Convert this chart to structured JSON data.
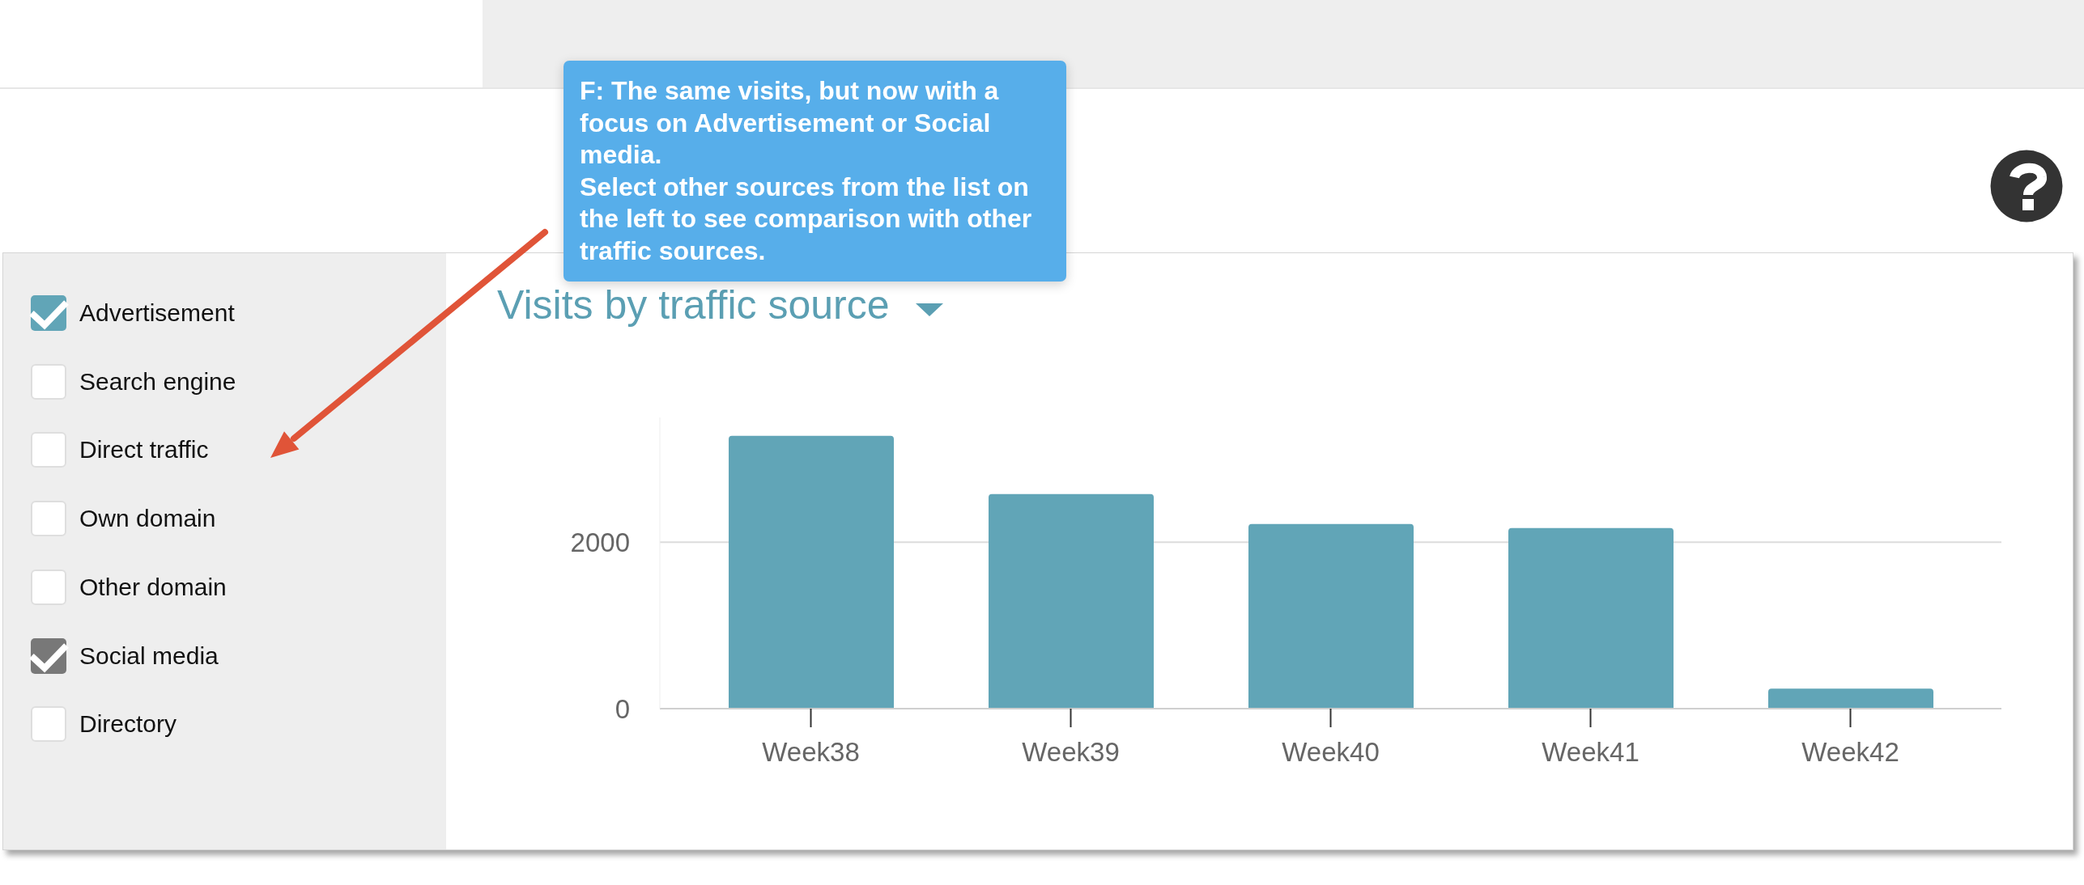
{
  "chart_data": {
    "type": "bar",
    "title": "Visits by traffic source",
    "categories": [
      "Week38",
      "Week39",
      "Week40",
      "Week41",
      "Week42"
    ],
    "values": [
      3280,
      2580,
      2220,
      2170,
      240
    ],
    "color": "#61a5b7",
    "ylim": [
      0,
      3500
    ],
    "yticks": [
      0,
      2000
    ],
    "grid": "y",
    "annotations": [
      "F: The same visits, but now with a focus on Advertisement or Social media.\nSelect other sources from the list on the left to see comparison with other traffic sources.",
      "Advertisement",
      "Search engine",
      "Direct traffic",
      "Own domain",
      "Other domain",
      "Social media",
      "Directory"
    ]
  }
}
